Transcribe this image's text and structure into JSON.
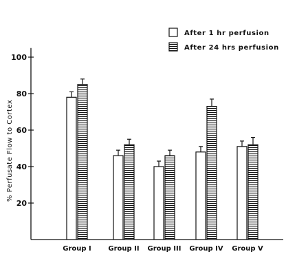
{
  "chart_data": {
    "type": "bar",
    "ylabel": "% Perfusate Flow to Cortex",
    "xlabel": "",
    "ylim": [
      0,
      105
    ],
    "yticks": [
      20,
      40,
      60,
      80,
      100
    ],
    "grid": false,
    "legend_position": "top-right",
    "categories": [
      "Group I",
      "Group II",
      "Group III",
      "Group IV",
      "Group V"
    ],
    "series": [
      {
        "name": "After 1 hr perfusion",
        "pattern": "open",
        "values": [
          78,
          46,
          40,
          48,
          51
        ],
        "errors": [
          3,
          3,
          3,
          3,
          3
        ]
      },
      {
        "name": "After 24 hrs perfusion",
        "pattern": "horizontal-hatch",
        "values": [
          85,
          52,
          46,
          73,
          52
        ],
        "errors": [
          3,
          3,
          3,
          4,
          4
        ]
      }
    ],
    "colors": {
      "ink": "#111111",
      "background": "#ffffff"
    }
  }
}
